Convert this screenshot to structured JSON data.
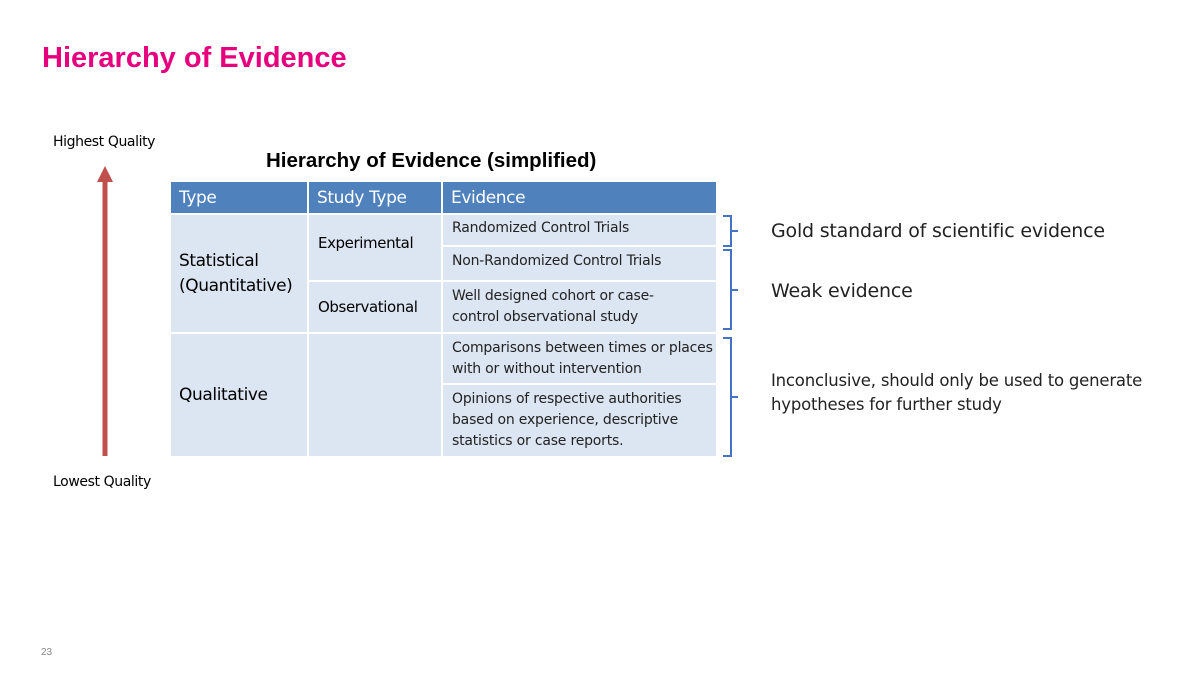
{
  "slide": {
    "title": "Hierarchy of Evidence",
    "page_number": "23",
    "accent_color": "#e6007e"
  },
  "scale": {
    "top_label": "Highest Quality",
    "bottom_label": "Lowest Quality",
    "arrow_color": "#c0504d"
  },
  "table": {
    "title": "Hierarchy of Evidence (simplified)",
    "headers": [
      "Type",
      "Study Type",
      "Evidence"
    ],
    "header_color": "#4f81bd",
    "cell_color": "#dce6f2",
    "types": [
      "Statistical (Quantitative)",
      "Qualitative"
    ],
    "study_types": [
      "Experimental",
      "Observational"
    ],
    "evidence": [
      "Randomized Control Trials",
      "Non-Randomized Control Trials",
      "Well designed cohort or case-control observational study",
      "Comparisons between times or places with or without intervention",
      "Opinions of respective authorities based on experience, descriptive statistics or case reports."
    ]
  },
  "annotations": {
    "gold": "Gold standard of scientific evidence",
    "weak": "Weak evidence",
    "inconclusive": "Inconclusive, should only be used to generate hypotheses for further study",
    "brace_color": "#4472c4"
  }
}
